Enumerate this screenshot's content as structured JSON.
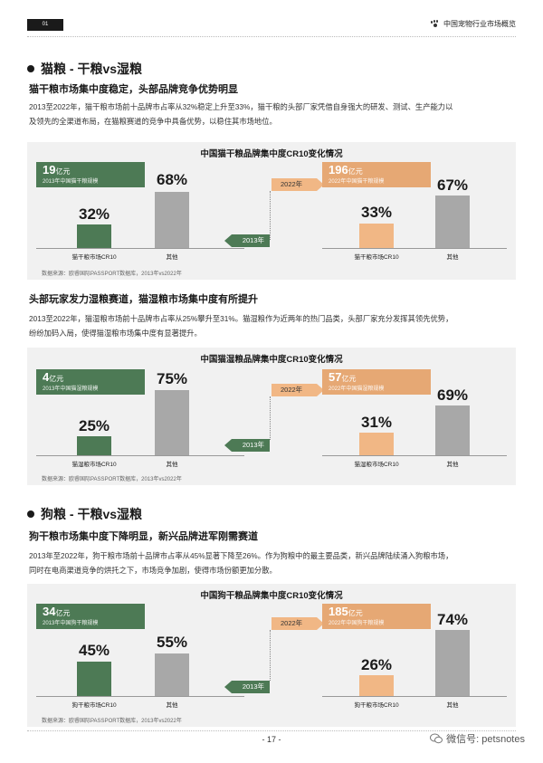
{
  "header": {
    "page_tag": "01",
    "title": "中国宠物行业市场概览"
  },
  "sections": [
    {
      "title": "猫粮 - 干粮vs湿粮",
      "subsections": [
        {
          "heading": "猫干粮市场集中度稳定，头部品牌竞争优势明显",
          "paragraph_lines": [
            "2013至2022年，猫干粮市场前十品牌市占率从32%稳定上升至33%，猫干粮的头部厂家凭借自身强大的研发、测试、生产能力以",
            "及领先的全渠道布局，在猫粮赛道的竞争中具备优势，以稳住其市场地位。"
          ],
          "chart": {
            "title": "中国猫干粮品牌集中度CR10变化情况",
            "left": {
              "badge_value": "19",
              "badge_unit": "亿元",
              "badge_sub": "2013年中国猫干粮规模",
              "cr10": "32%",
              "other": "68%",
              "cr10_label": "猫干粮市场CR10",
              "other_label": "其他",
              "cr10_val": 32,
              "other_val": 68
            },
            "right": {
              "badge_value": "196",
              "badge_unit": "亿元",
              "badge_sub": "2022年中国猫干粮规模",
              "cr10": "33%",
              "other": "67%",
              "cr10_label": "猫干粮市场CR10",
              "other_label": "其他",
              "cr10_val": 33,
              "other_val": 67
            },
            "arrow_forward": "2022年",
            "arrow_back": "2013年",
            "source": "数据来源：欧睿国际PASSPORT数据库，2013年vs2022年"
          }
        },
        {
          "heading": "头部玩家发力湿粮赛道，猫湿粮市场集中度有所提升",
          "paragraph_lines": [
            "2013至2022年，猫湿粮市场前十品牌市占率从25%攀升至31%。猫湿粮作为近两年的热门品类，头部厂家充分发挥其领先优势，",
            "纷纷加码入局，使得猫湿粮市场集中度有显著提升。"
          ],
          "chart": {
            "title": "中国猫湿粮品牌集中度CR10变化情况",
            "left": {
              "badge_value": "4",
              "badge_unit": "亿元",
              "badge_sub": "2013年中国猫湿粮规模",
              "cr10": "25%",
              "other": "75%",
              "cr10_label": "猫湿粮市场CR10",
              "other_label": "其他",
              "cr10_val": 25,
              "other_val": 75
            },
            "right": {
              "badge_value": "57",
              "badge_unit": "亿元",
              "badge_sub": "2022年中国猫湿粮规模",
              "cr10": "31%",
              "other": "69%",
              "cr10_label": "猫湿粮市场CR10",
              "other_label": "其他",
              "cr10_val": 31,
              "other_val": 69
            },
            "arrow_forward": "2022年",
            "arrow_back": "2013年",
            "source": "数据来源：欧睿国际PASSPORT数据库，2013年vs2022年"
          }
        }
      ]
    },
    {
      "title": "狗粮 - 干粮vs湿粮",
      "subsections": [
        {
          "heading": "狗干粮市场集中度下降明显，新兴品牌进军刚需赛道",
          "paragraph_lines": [
            "2013年至2022年，狗干粮市场前十品牌市占率从45%显著下降至26%。作为狗粮中的最主要品类，新兴品牌陆续涌入狗粮市场，",
            "同时在电商渠道竞争的烘托之下，市场竞争加剧，使得市场份额更加分散。"
          ],
          "chart": {
            "title": "中国狗干粮品牌集中度CR10变化情况",
            "left": {
              "badge_value": "34",
              "badge_unit": "亿元",
              "badge_sub": "2013年中国狗干粮规模",
              "cr10": "45%",
              "other": "55%",
              "cr10_label": "狗干粮市场CR10",
              "other_label": "其他",
              "cr10_val": 45,
              "other_val": 55
            },
            "right": {
              "badge_value": "185",
              "badge_unit": "亿元",
              "badge_sub": "2022年中国狗干粮规模",
              "cr10": "26%",
              "other": "74%",
              "cr10_label": "狗干粮市场CR10",
              "other_label": "其他",
              "cr10_val": 26,
              "other_val": 74
            },
            "arrow_forward": "2022年",
            "arrow_back": "2013年",
            "source": "数据来源：欧睿国际PASSPORT数据库，2013年vs2022年"
          }
        }
      ]
    }
  ],
  "footer": {
    "page_number": "- 17 -",
    "wechat": "微信号: petsnotes"
  },
  "colors": {
    "green": "#4d7a55",
    "orange": "#f1b785",
    "gray": "#a8a8a8"
  }
}
